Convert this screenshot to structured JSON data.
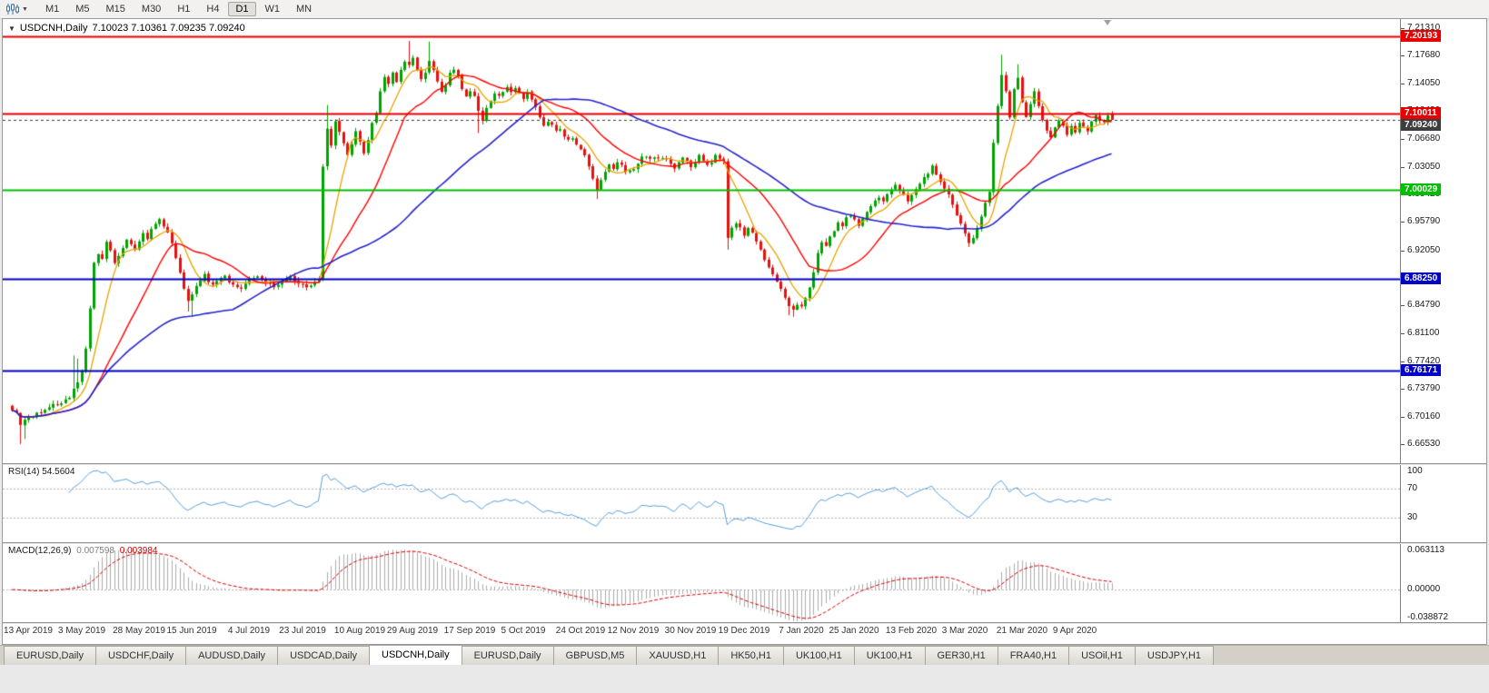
{
  "toolbar": {
    "timeframes": [
      {
        "label": "M1",
        "active": false
      },
      {
        "label": "M5",
        "active": false
      },
      {
        "label": "M15",
        "active": false
      },
      {
        "label": "M30",
        "active": false
      },
      {
        "label": "H1",
        "active": false
      },
      {
        "label": "H4",
        "active": false
      },
      {
        "label": "D1",
        "active": true
      },
      {
        "label": "W1",
        "active": false
      },
      {
        "label": "MN",
        "active": false
      }
    ]
  },
  "chart": {
    "collapse_arrow": "▼",
    "title_symbol": "USDCNH,Daily",
    "title_ohlc": "7.10023 7.10361 7.09235 7.09240"
  },
  "chart_data": {
    "type": "candlestick",
    "symbol": "USDCNH",
    "timeframe": "Daily",
    "last_ohlc": {
      "open": 7.10023,
      "high": 7.10361,
      "low": 7.09235,
      "close": 7.0924
    },
    "num_candles": 270,
    "up_color": "#00A400",
    "down_color": "#E81010",
    "y_axis": {
      "min": 6.6653,
      "max": 7.2131,
      "ticks": [
        "7.21310",
        "7.17680",
        "7.14050",
        "7.10420",
        "7.06680",
        "7.03050",
        "6.99420",
        "6.95790",
        "6.92050",
        "6.88420",
        "6.84790",
        "6.81100",
        "6.77420",
        "6.73790",
        "6.70160",
        "6.66530"
      ]
    },
    "x_labels": [
      {
        "label": "13 Apr 2019",
        "index": 4
      },
      {
        "label": "3 May 2019",
        "index": 17
      },
      {
        "label": "28 May 2019",
        "index": 31
      },
      {
        "label": "15 Jun 2019",
        "index": 44
      },
      {
        "label": "4 Jul 2019",
        "index": 58
      },
      {
        "label": "23 Jul 2019",
        "index": 71
      },
      {
        "label": "10 Aug 2019",
        "index": 85
      },
      {
        "label": "29 Aug 2019",
        "index": 98
      },
      {
        "label": "17 Sep 2019",
        "index": 112
      },
      {
        "label": "5 Oct 2019",
        "index": 125
      },
      {
        "label": "24 Oct 2019",
        "index": 139
      },
      {
        "label": "12 Nov 2019",
        "index": 152
      },
      {
        "label": "30 Nov 2019",
        "index": 166
      },
      {
        "label": "19 Dec 2019",
        "index": 179
      },
      {
        "label": "7 Jan 2020",
        "index": 193
      },
      {
        "label": "25 Jan 2020",
        "index": 206
      },
      {
        "label": "13 Feb 2020",
        "index": 220
      },
      {
        "label": "3 Mar 2020",
        "index": 233
      },
      {
        "label": "21 Mar 2020",
        "index": 247
      },
      {
        "label": "9 Apr 2020",
        "index": 260
      }
    ],
    "horizontal_lines": [
      {
        "label": "7.20193",
        "price": 7.20193,
        "color": "#E60000",
        "style": "solid"
      },
      {
        "label": "7.10011",
        "price": 7.10011,
        "color": "#E60000",
        "style": "solid"
      },
      {
        "label": "7.09240",
        "price": 7.0924,
        "color": "#3E3E3E",
        "style": "bid"
      },
      {
        "label": "7.00029",
        "price": 7.00029,
        "color": "#00BE00",
        "style": "solid"
      },
      {
        "label": "6.88250",
        "price": 6.8825,
        "color": "#0000C8",
        "style": "solid"
      },
      {
        "label": "6.76171",
        "price": 6.76171,
        "color": "#0000C8",
        "style": "solid"
      }
    ],
    "moving_averages": [
      {
        "period": 8,
        "color": "#E8A400"
      },
      {
        "period": 21,
        "color": "#FF0000"
      },
      {
        "period": 55,
        "color": "#2424CC"
      }
    ],
    "close_anchors": [
      [
        0,
        6.712
      ],
      [
        1,
        6.705
      ],
      [
        2,
        6.69
      ],
      [
        3,
        6.698
      ],
      [
        5,
        6.702
      ],
      [
        8,
        6.712
      ],
      [
        11,
        6.718
      ],
      [
        14,
        6.726
      ],
      [
        15,
        6.737
      ],
      [
        16,
        6.748
      ],
      [
        17,
        6.76
      ],
      [
        18,
        6.792
      ],
      [
        19,
        6.845
      ],
      [
        20,
        6.902
      ],
      [
        21,
        6.915
      ],
      [
        22,
        6.908
      ],
      [
        23,
        6.93
      ],
      [
        24,
        6.92
      ],
      [
        25,
        6.905
      ],
      [
        26,
        6.912
      ],
      [
        27,
        6.925
      ],
      [
        28,
        6.935
      ],
      [
        29,
        6.928
      ],
      [
        30,
        6.92
      ],
      [
        31,
        6.93
      ],
      [
        32,
        6.942
      ],
      [
        33,
        6.935
      ],
      [
        34,
        6.948
      ],
      [
        35,
        6.955
      ],
      [
        36,
        6.96
      ],
      [
        37,
        6.952
      ],
      [
        38,
        6.945
      ],
      [
        39,
        6.932
      ],
      [
        40,
        6.912
      ],
      [
        41,
        6.89
      ],
      [
        42,
        6.868
      ],
      [
        43,
        6.852
      ],
      [
        44,
        6.86
      ],
      [
        45,
        6.872
      ],
      [
        46,
        6.882
      ],
      [
        47,
        6.888
      ],
      [
        48,
        6.88
      ],
      [
        49,
        6.874
      ],
      [
        50,
        6.88
      ],
      [
        52,
        6.885
      ],
      [
        54,
        6.876
      ],
      [
        56,
        6.87
      ],
      [
        58,
        6.88
      ],
      [
        60,
        6.886
      ],
      [
        62,
        6.878
      ],
      [
        64,
        6.872
      ],
      [
        66,
        6.88
      ],
      [
        68,
        6.885
      ],
      [
        70,
        6.878
      ],
      [
        72,
        6.872
      ],
      [
        74,
        6.878
      ],
      [
        75,
        6.885
      ],
      [
        76,
        7.03
      ],
      [
        77,
        7.082
      ],
      [
        78,
        7.058
      ],
      [
        79,
        7.09
      ],
      [
        80,
        7.075
      ],
      [
        81,
        7.06
      ],
      [
        82,
        7.048
      ],
      [
        83,
        7.06
      ],
      [
        84,
        7.078
      ],
      [
        85,
        7.062
      ],
      [
        86,
        7.05
      ],
      [
        87,
        7.068
      ],
      [
        88,
        7.088
      ],
      [
        89,
        7.102
      ],
      [
        90,
        7.128
      ],
      [
        91,
        7.148
      ],
      [
        92,
        7.138
      ],
      [
        93,
        7.155
      ],
      [
        94,
        7.142
      ],
      [
        95,
        7.158
      ],
      [
        96,
        7.17
      ],
      [
        97,
        7.164
      ],
      [
        98,
        7.175
      ],
      [
        99,
        7.16
      ],
      [
        100,
        7.146
      ],
      [
        101,
        7.156
      ],
      [
        102,
        7.17
      ],
      [
        103,
        7.158
      ],
      [
        104,
        7.144
      ],
      [
        105,
        7.13
      ],
      [
        106,
        7.14
      ],
      [
        107,
        7.152
      ],
      [
        108,
        7.16
      ],
      [
        109,
        7.148
      ],
      [
        110,
        7.135
      ],
      [
        111,
        7.125
      ],
      [
        112,
        7.132
      ],
      [
        113,
        7.122
      ],
      [
        114,
        7.104
      ],
      [
        115,
        7.092
      ],
      [
        116,
        7.106
      ],
      [
        117,
        7.118
      ],
      [
        118,
        7.128
      ],
      [
        119,
        7.122
      ],
      [
        120,
        7.13
      ],
      [
        121,
        7.138
      ],
      [
        122,
        7.13
      ],
      [
        123,
        7.136
      ],
      [
        124,
        7.128
      ],
      [
        125,
        7.12
      ],
      [
        126,
        7.128
      ],
      [
        127,
        7.118
      ],
      [
        128,
        7.108
      ],
      [
        129,
        7.096
      ],
      [
        130,
        7.086
      ],
      [
        131,
        7.092
      ],
      [
        132,
        7.084
      ],
      [
        133,
        7.076
      ],
      [
        134,
        7.082
      ],
      [
        135,
        7.072
      ],
      [
        136,
        7.064
      ],
      [
        137,
        7.07
      ],
      [
        138,
        7.062
      ],
      [
        139,
        7.055
      ],
      [
        140,
        7.048
      ],
      [
        141,
        7.032
      ],
      [
        142,
        7.015
      ],
      [
        143,
        7.002
      ],
      [
        144,
        7.012
      ],
      [
        145,
        7.025
      ],
      [
        146,
        7.032
      ],
      [
        147,
        7.028
      ],
      [
        148,
        7.038
      ],
      [
        150,
        7.026
      ],
      [
        152,
        7.028
      ],
      [
        154,
        7.042
      ],
      [
        156,
        7.042
      ],
      [
        158,
        7.042
      ],
      [
        160,
        7.042
      ],
      [
        162,
        7.03
      ],
      [
        164,
        7.042
      ],
      [
        166,
        7.032
      ],
      [
        168,
        7.044
      ],
      [
        170,
        7.032
      ],
      [
        172,
        7.044
      ],
      [
        174,
        7.036
      ],
      [
        175,
        6.938
      ],
      [
        176,
        6.948
      ],
      [
        177,
        6.958
      ],
      [
        178,
        6.95
      ],
      [
        179,
        6.942
      ],
      [
        180,
        6.95
      ],
      [
        181,
        6.942
      ],
      [
        182,
        6.932
      ],
      [
        183,
        6.92
      ],
      [
        184,
        6.908
      ],
      [
        185,
        6.898
      ],
      [
        186,
        6.888
      ],
      [
        187,
        6.88
      ],
      [
        188,
        6.87
      ],
      [
        189,
        6.858
      ],
      [
        190,
        6.848
      ],
      [
        191,
        6.842
      ],
      [
        192,
        6.85
      ],
      [
        193,
        6.845
      ],
      [
        194,
        6.856
      ],
      [
        195,
        6.872
      ],
      [
        196,
        6.892
      ],
      [
        197,
        6.915
      ],
      [
        198,
        6.932
      ],
      [
        199,
        6.928
      ],
      [
        200,
        6.938
      ],
      [
        201,
        6.948
      ],
      [
        202,
        6.958
      ],
      [
        203,
        6.952
      ],
      [
        204,
        6.962
      ],
      [
        205,
        6.968
      ],
      [
        206,
        6.962
      ],
      [
        207,
        6.955
      ],
      [
        208,
        6.962
      ],
      [
        209,
        6.97
      ],
      [
        210,
        6.978
      ],
      [
        211,
        6.985
      ],
      [
        212,
        6.992
      ],
      [
        213,
        6.985
      ],
      [
        214,
        6.992
      ],
      [
        215,
        7.0
      ],
      [
        216,
        7.008
      ],
      [
        217,
        7.0
      ],
      [
        218,
        6.992
      ],
      [
        219,
        6.985
      ],
      [
        220,
        6.992
      ],
      [
        221,
        7.0
      ],
      [
        222,
        7.008
      ],
      [
        223,
        7.015
      ],
      [
        224,
        7.022
      ],
      [
        225,
        7.03
      ],
      [
        226,
        7.022
      ],
      [
        227,
        7.012
      ],
      [
        228,
        7.002
      ],
      [
        229,
        6.992
      ],
      [
        230,
        6.98
      ],
      [
        231,
        6.968
      ],
      [
        232,
        6.955
      ],
      [
        233,
        6.942
      ],
      [
        234,
        6.93
      ],
      [
        235,
        6.938
      ],
      [
        236,
        6.95
      ],
      [
        237,
        6.965
      ],
      [
        238,
        6.982
      ],
      [
        239,
        7.0
      ],
      [
        240,
        7.06
      ],
      [
        241,
        7.112
      ],
      [
        242,
        7.15
      ],
      [
        243,
        7.128
      ],
      [
        244,
        7.098
      ],
      [
        245,
        7.135
      ],
      [
        246,
        7.148
      ],
      [
        247,
        7.118
      ],
      [
        248,
        7.095
      ],
      [
        249,
        7.112
      ],
      [
        250,
        7.128
      ],
      [
        251,
        7.108
      ],
      [
        252,
        7.092
      ],
      [
        253,
        7.08
      ],
      [
        254,
        7.068
      ],
      [
        255,
        7.08
      ],
      [
        256,
        7.092
      ],
      [
        257,
        7.085
      ],
      [
        258,
        7.075
      ],
      [
        259,
        7.082
      ],
      [
        260,
        7.078
      ],
      [
        261,
        7.088
      ],
      [
        262,
        7.082
      ],
      [
        263,
        7.078
      ],
      [
        264,
        7.09
      ],
      [
        265,
        7.098
      ],
      [
        266,
        7.094
      ],
      [
        267,
        7.09
      ],
      [
        268,
        7.098
      ],
      [
        269,
        7.0924
      ]
    ],
    "wick_events": [
      {
        "i": 2,
        "l": 6.6655
      },
      {
        "i": 3,
        "l": 6.672
      },
      {
        "i": 15,
        "h": 6.782
      },
      {
        "i": 16,
        "h": 6.778
      },
      {
        "i": 43,
        "l": 6.84
      },
      {
        "i": 44,
        "l": 6.833
      },
      {
        "i": 77,
        "h": 7.112
      },
      {
        "i": 97,
        "h": 7.1962
      },
      {
        "i": 102,
        "h": 7.1955
      },
      {
        "i": 114,
        "l": 7.075
      },
      {
        "i": 143,
        "l": 6.988
      },
      {
        "i": 175,
        "l": 6.9215
      },
      {
        "i": 190,
        "l": 6.835
      },
      {
        "i": 191,
        "l": 6.833
      },
      {
        "i": 234,
        "l": 6.925
      },
      {
        "i": 242,
        "h": 7.178
      },
      {
        "i": 246,
        "h": 7.1655
      }
    ],
    "indicators": {
      "rsi": {
        "label": "RSI(14)",
        "value": "54.5604",
        "line_color": "#5AA0DC",
        "levels": [
          {
            "label": "100",
            "value": 100
          },
          {
            "label": "70",
            "value": 70
          },
          {
            "label": "30",
            "value": 30
          }
        ],
        "level_lines": [
          70,
          30
        ]
      },
      "macd": {
        "label": "MACD(12,26,9)",
        "value_main": "0.007598",
        "value_signal": "0.003984",
        "histogram_color": "#ABABAB",
        "signal_color": "#D80000",
        "axis": [
          {
            "label": "0.063113",
            "value": 0.063113
          },
          {
            "label": "0.00000",
            "value": 0
          },
          {
            "label": "-0.038872",
            "value": -0.038872
          }
        ]
      }
    }
  },
  "bottom_tabs": {
    "items": [
      {
        "label": "EURUSD,Daily",
        "active": false
      },
      {
        "label": "USDCHF,Daily",
        "active": false
      },
      {
        "label": "AUDUSD,Daily",
        "active": false
      },
      {
        "label": "USDCAD,Daily",
        "active": false
      },
      {
        "label": "USDCNH,Daily",
        "active": true
      },
      {
        "label": "EURUSD,Daily",
        "active": false
      },
      {
        "label": "GBPUSD,M5",
        "active": false
      },
      {
        "label": "XAUUSD,H1",
        "active": false
      },
      {
        "label": "HK50,H1",
        "active": false
      },
      {
        "label": "UK100,H1",
        "active": false
      },
      {
        "label": "UK100,H1",
        "active": false
      },
      {
        "label": "GER30,H1",
        "active": false
      },
      {
        "label": "FRA40,H1",
        "active": false
      },
      {
        "label": "USOil,H1",
        "active": false
      },
      {
        "label": "USDJPY,H1",
        "active": false
      }
    ]
  }
}
